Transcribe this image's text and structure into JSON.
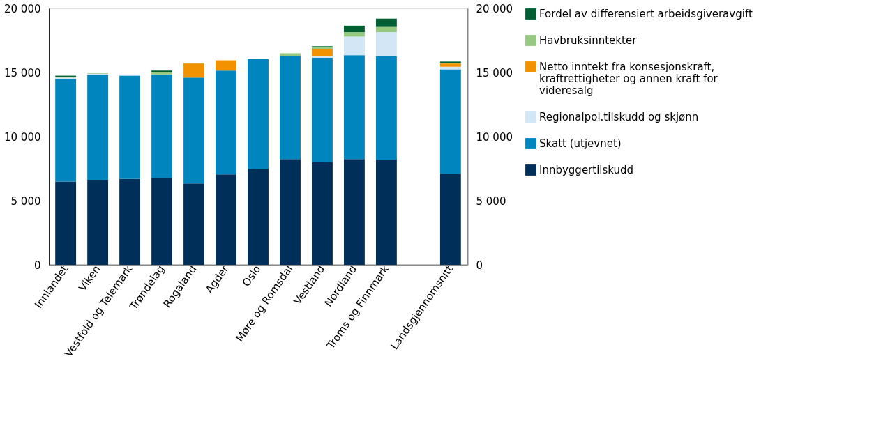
{
  "chart_data": {
    "type": "bar",
    "stacked": true,
    "categories": [
      "Innlandet",
      "Viken",
      "Vestfold og Telemark",
      "Trøndelag",
      "Rogaland",
      "Agder",
      "Oslo",
      "Møre og Romsdal",
      "Vestland",
      "Nordland",
      "Troms og Finnmark",
      null,
      "Landsgjennomsnitt"
    ],
    "series": [
      {
        "name": "Innbyggertilskudd",
        "color": "#002f5a",
        "values": [
          6500,
          6600,
          6700,
          6750,
          6350,
          7050,
          7500,
          8250,
          8000,
          8250,
          8200,
          null,
          7100
        ]
      },
      {
        "name": "Skatt (utjevnet)",
        "color": "#0085bf",
        "values": [
          8000,
          8200,
          8050,
          8100,
          8250,
          8100,
          8550,
          8050,
          8150,
          8100,
          8050,
          null,
          8150
        ]
      },
      {
        "name": "Regionalpol.tilskudd og skjønn",
        "color": "#d2e6f5",
        "values": [
          100,
          100,
          100,
          null,
          null,
          null,
          0,
          null,
          100,
          1450,
          1900,
          null,
          200
        ]
      },
      {
        "name": "Netto inntekt fra konsesjonskraft, kraftrettigheter og annen kraft for videresalg",
        "color": "#f39200",
        "values": [
          0,
          0,
          0,
          0,
          1100,
          800,
          0,
          0,
          600,
          0,
          0,
          null,
          250
        ]
      },
      {
        "name": "Havbruksinntekter",
        "color": "#96c882",
        "values": [
          50,
          50,
          0,
          200,
          50,
          0,
          0,
          200,
          150,
          350,
          400,
          null,
          50
        ]
      },
      {
        "name": "Fordel av differensiert arbeidsgiveravgift",
        "color": "#005f32",
        "values": [
          100,
          0,
          0,
          100,
          0,
          0,
          0,
          null,
          50,
          500,
          650,
          null,
          100
        ]
      }
    ],
    "ylim": [
      0,
      20000
    ],
    "yticks": [
      0,
      {
        "value": 5000,
        "label": "5 000"
      },
      {
        "value": 10000,
        "label": "10 000"
      },
      {
        "value": 15000,
        "label": "15 000"
      },
      {
        "value": 20000,
        "label": "20 000"
      }
    ],
    "y2lim": [
      0,
      20000
    ],
    "y2ticks": [
      0,
      {
        "value": 5000,
        "label": "5 000"
      },
      {
        "value": 10000,
        "label": "10 000"
      },
      {
        "value": 15000,
        "label": "15 000"
      },
      {
        "value": 20000,
        "label": "20 000"
      }
    ],
    "legend": "right",
    "grid": false
  }
}
